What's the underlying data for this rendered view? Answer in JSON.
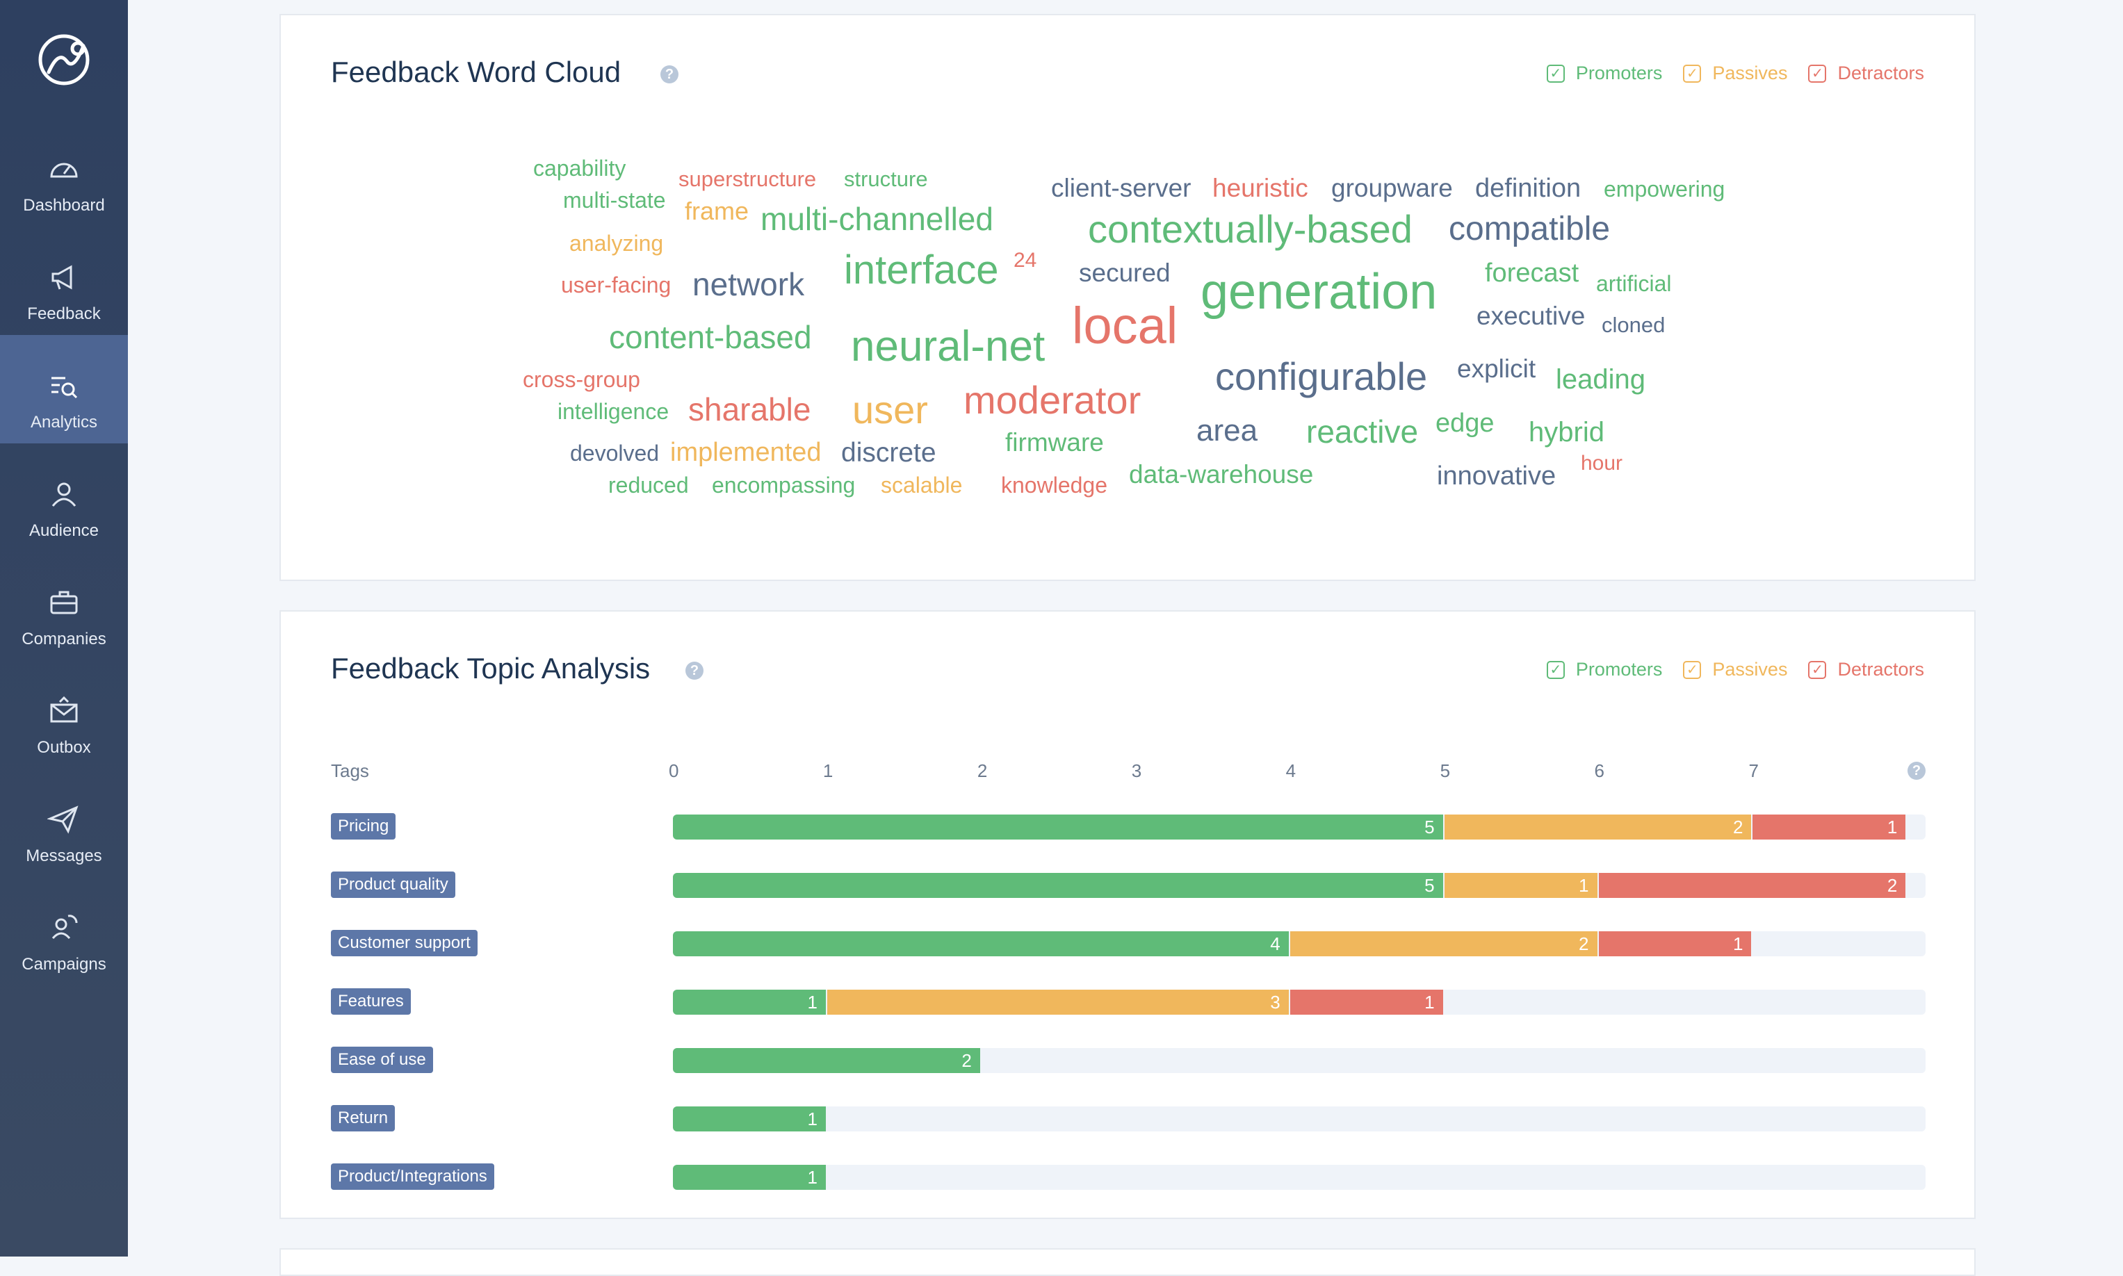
{
  "colors": {
    "promoters": "#5fbb78",
    "passives": "#f0b75c",
    "detractors": "#e5756a",
    "neutral": "#5a6e8c"
  },
  "sidebar": {
    "active_index": 2,
    "items": [
      {
        "label": "Dashboard",
        "icon": "speedometer-icon"
      },
      {
        "label": "Feedback",
        "icon": "megaphone-icon"
      },
      {
        "label": "Analytics",
        "icon": "analytics-search-icon"
      },
      {
        "label": "Audience",
        "icon": "users-icon"
      },
      {
        "label": "Companies",
        "icon": "briefcase-icon"
      },
      {
        "label": "Outbox",
        "icon": "envelope-icon"
      },
      {
        "label": "Messages",
        "icon": "paper-plane-icon"
      },
      {
        "label": "Campaigns",
        "icon": "campaign-refresh-icon"
      }
    ]
  },
  "word_cloud": {
    "title": "Feedback Word Cloud",
    "legend": {
      "promoters": "Promoters",
      "passives": "Passives",
      "detractors": "Detractors"
    },
    "words": [
      {
        "t": "capability",
        "c": "promoters"
      },
      {
        "t": "superstructure",
        "c": "detractors"
      },
      {
        "t": "structure",
        "c": "promoters"
      },
      {
        "t": "multi-state",
        "c": "promoters"
      },
      {
        "t": "frame",
        "c": "passives"
      },
      {
        "t": "multi-channelled",
        "c": "promoters"
      },
      {
        "t": "analyzing",
        "c": "passives"
      },
      {
        "t": "user-facing",
        "c": "detractors"
      },
      {
        "t": "network",
        "c": "neutral"
      },
      {
        "t": "interface",
        "c": "promoters"
      },
      {
        "t": "24",
        "c": "detractors"
      },
      {
        "t": "client-server",
        "c": "neutral"
      },
      {
        "t": "heuristic",
        "c": "detractors"
      },
      {
        "t": "groupware",
        "c": "neutral"
      },
      {
        "t": "definition",
        "c": "neutral"
      },
      {
        "t": "empowering",
        "c": "promoters"
      },
      {
        "t": "contextually-based",
        "c": "promoters"
      },
      {
        "t": "compatible",
        "c": "neutral"
      },
      {
        "t": "secured",
        "c": "neutral"
      },
      {
        "t": "generation",
        "c": "promoters"
      },
      {
        "t": "forecast",
        "c": "promoters"
      },
      {
        "t": "artificial",
        "c": "promoters"
      },
      {
        "t": "executive",
        "c": "neutral"
      },
      {
        "t": "cloned",
        "c": "neutral"
      },
      {
        "t": "local",
        "c": "detractors"
      },
      {
        "t": "content-based",
        "c": "promoters"
      },
      {
        "t": "neural-net",
        "c": "promoters"
      },
      {
        "t": "cross-group",
        "c": "detractors"
      },
      {
        "t": "intelligence",
        "c": "promoters"
      },
      {
        "t": "sharable",
        "c": "detractors"
      },
      {
        "t": "user",
        "c": "passives"
      },
      {
        "t": "moderator",
        "c": "detractors"
      },
      {
        "t": "configurable",
        "c": "neutral"
      },
      {
        "t": "explicit",
        "c": "neutral"
      },
      {
        "t": "leading",
        "c": "promoters"
      },
      {
        "t": "devolved",
        "c": "neutral"
      },
      {
        "t": "implemented",
        "c": "passives"
      },
      {
        "t": "discrete",
        "c": "neutral"
      },
      {
        "t": "firmware",
        "c": "promoters"
      },
      {
        "t": "area",
        "c": "neutral"
      },
      {
        "t": "reactive",
        "c": "promoters"
      },
      {
        "t": "edge",
        "c": "promoters"
      },
      {
        "t": "hybrid",
        "c": "promoters"
      },
      {
        "t": "reduced",
        "c": "promoters"
      },
      {
        "t": "encompassing",
        "c": "promoters"
      },
      {
        "t": "scalable",
        "c": "passives"
      },
      {
        "t": "knowledge",
        "c": "detractors"
      },
      {
        "t": "data-warehouse",
        "c": "promoters"
      },
      {
        "t": "innovative",
        "c": "neutral"
      },
      {
        "t": "hour",
        "c": "detractors"
      }
    ]
  },
  "topic_analysis": {
    "title": "Feedback Topic Analysis",
    "legend": {
      "promoters": "Promoters",
      "passives": "Passives",
      "detractors": "Detractors"
    },
    "column_header": "Tags",
    "help_label": "?",
    "chart_data": {
      "type": "bar",
      "orientation": "horizontal-stacked",
      "categories": [
        "Pricing",
        "Product quality",
        "Customer support",
        "Features",
        "Ease of use",
        "Return",
        "Product/Integrations"
      ],
      "series": [
        {
          "name": "Promoters",
          "values": [
            5,
            5,
            4,
            1,
            2,
            1,
            1
          ]
        },
        {
          "name": "Passives",
          "values": [
            2,
            1,
            2,
            3,
            0,
            0,
            0
          ]
        },
        {
          "name": "Detractors",
          "values": [
            1,
            2,
            1,
            1,
            0,
            0,
            0
          ]
        }
      ],
      "x_ticks": [
        "0",
        "1",
        "2",
        "3",
        "4",
        "5",
        "6",
        "7"
      ],
      "xlim": [
        0,
        8.12
      ]
    }
  }
}
